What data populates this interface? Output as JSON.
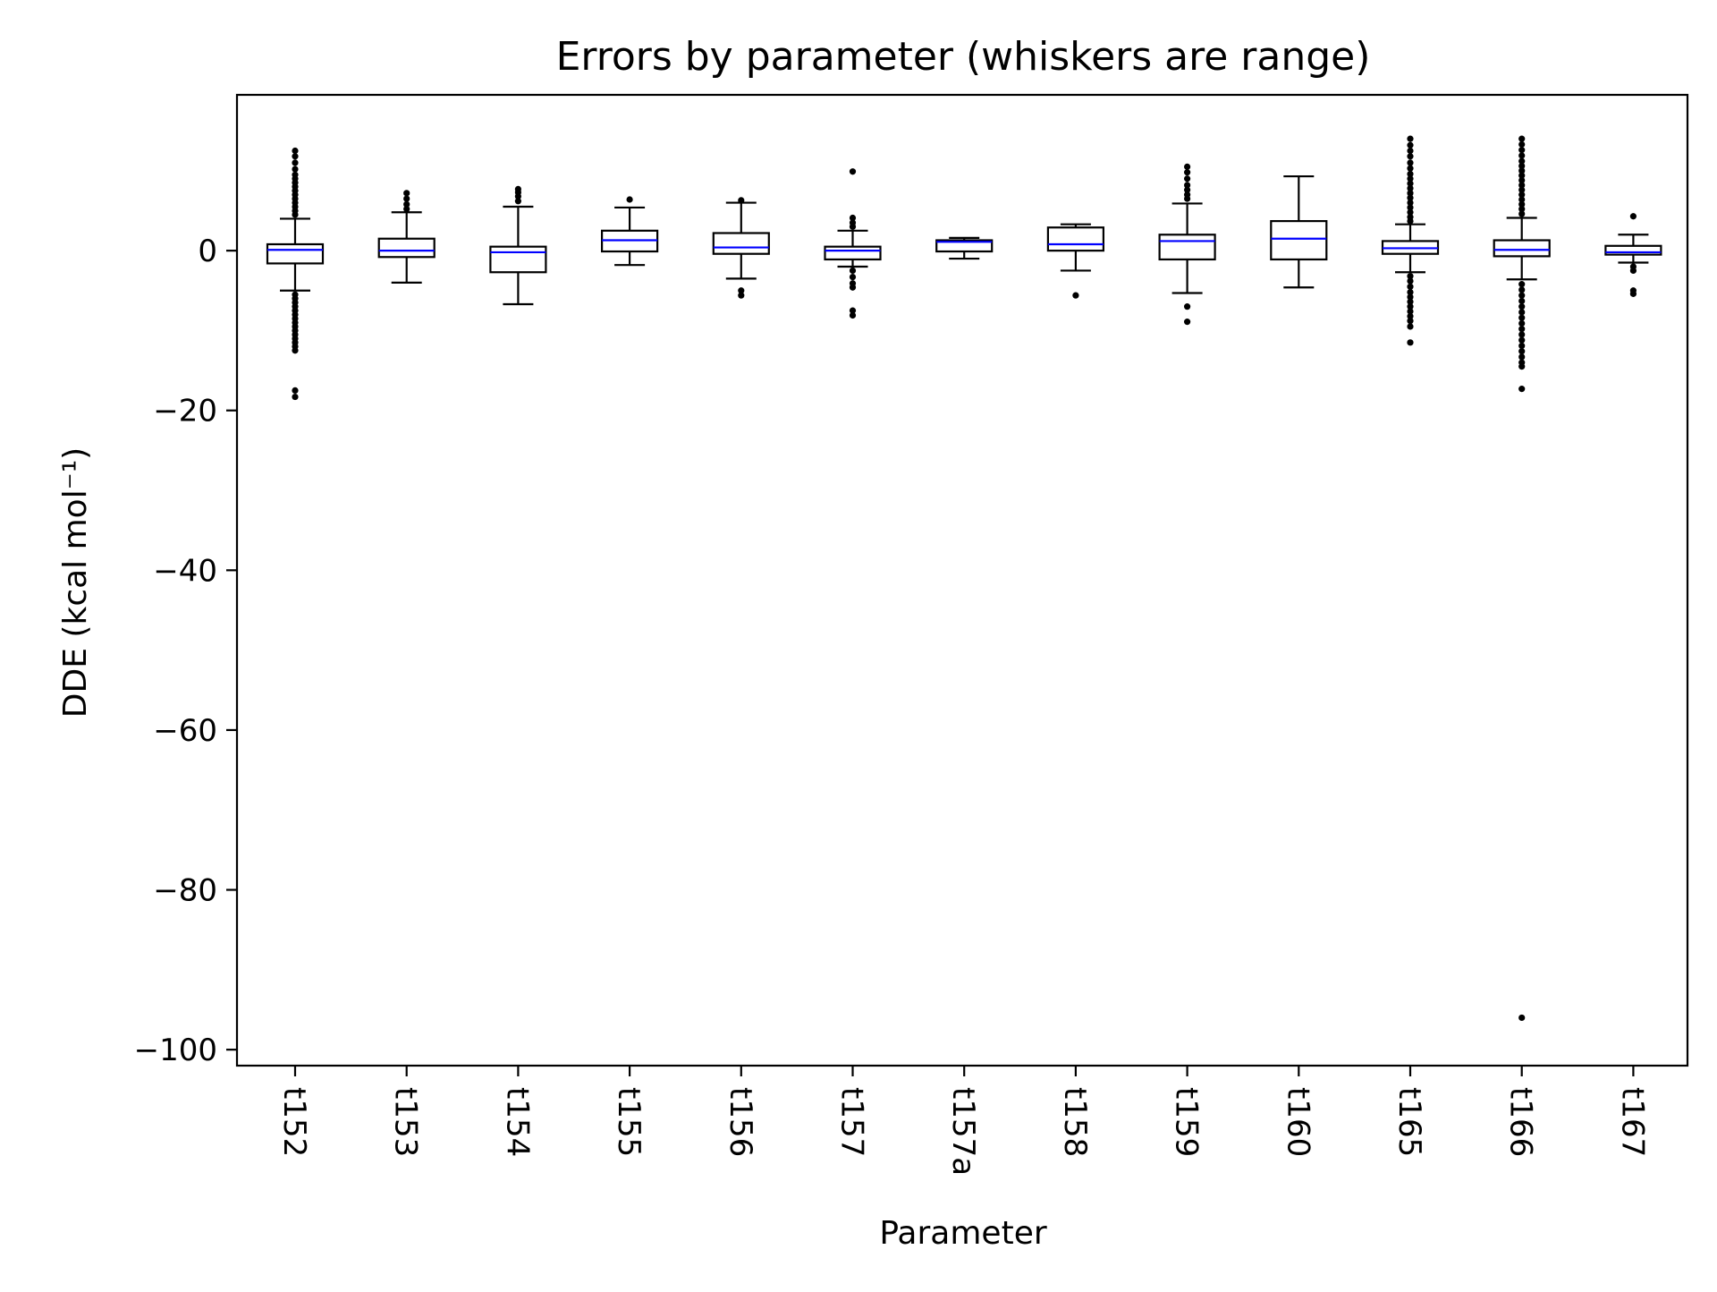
{
  "chart_data": {
    "type": "box",
    "title": "Errors by parameter (whiskers are range)",
    "xlabel": "Parameter",
    "ylabel": "DDE (kcal mol⁻¹)",
    "ylim": [
      -102,
      19.5
    ],
    "yticks": [
      0,
      -20,
      -40,
      -60,
      -80,
      -100
    ],
    "ytick_labels": [
      "0",
      "−20",
      "−40",
      "−60",
      "−80",
      "−100"
    ],
    "grid": false,
    "legend": "none",
    "colors": {
      "box": "#000000",
      "median": "#0000ff",
      "outlier": "#000000"
    },
    "categories": [
      "t152",
      "t153",
      "t154",
      "t155",
      "t156",
      "t157",
      "t157a",
      "t158",
      "t159",
      "t160",
      "t165",
      "t166",
      "t167"
    ],
    "series": [
      {
        "category": "t152",
        "q1": -1.6,
        "median": 0.1,
        "q3": 0.8,
        "whisker_low": -5.0,
        "whisker_high": 4.0,
        "outliers": [
          12.5,
          11.8,
          11.0,
          10.2,
          9.5,
          9.0,
          8.5,
          8.0,
          7.5,
          7.0,
          6.5,
          6.0,
          5.5,
          5.0,
          4.5,
          -5.5,
          -6.0,
          -6.5,
          -7.0,
          -7.5,
          -8.0,
          -8.5,
          -9.0,
          -9.5,
          -10.0,
          -10.5,
          -11.0,
          -11.5,
          -12.0,
          -12.5,
          -17.5,
          -18.3
        ]
      },
      {
        "category": "t153",
        "q1": -0.8,
        "median": 0.0,
        "q3": 1.5,
        "whisker_low": -4.0,
        "whisker_high": 4.8,
        "outliers": [
          7.2,
          6.5,
          5.8,
          5.2
        ]
      },
      {
        "category": "t154",
        "q1": -2.7,
        "median": -0.2,
        "q3": 0.5,
        "whisker_low": -6.7,
        "whisker_high": 5.5,
        "outliers": [
          7.7,
          7.3,
          6.8,
          6.2
        ]
      },
      {
        "category": "t155",
        "q1": -0.1,
        "median": 1.3,
        "q3": 2.5,
        "whisker_low": -1.8,
        "whisker_high": 5.4,
        "outliers": [
          6.4
        ]
      },
      {
        "category": "t156",
        "q1": -0.4,
        "median": 0.4,
        "q3": 2.2,
        "whisker_low": -3.5,
        "whisker_high": 6.0,
        "outliers": [
          6.3,
          -5.0,
          -5.6
        ]
      },
      {
        "category": "t157",
        "q1": -1.1,
        "median": 0.0,
        "q3": 0.5,
        "whisker_low": -2.0,
        "whisker_high": 2.5,
        "outliers": [
          9.9,
          4.1,
          3.5,
          3.0,
          -2.5,
          -3.3,
          -4.1,
          -4.6,
          -7.5,
          -8.1
        ]
      },
      {
        "category": "t157a",
        "q1": -0.1,
        "median": 1.1,
        "q3": 1.3,
        "whisker_low": -1.0,
        "whisker_high": 1.6,
        "outliers": []
      },
      {
        "category": "t158",
        "q1": 0.0,
        "median": 0.8,
        "q3": 2.9,
        "whisker_low": -2.5,
        "whisker_high": 3.3,
        "outliers": [
          -5.6
        ]
      },
      {
        "category": "t159",
        "q1": -1.1,
        "median": 1.2,
        "q3": 2.0,
        "whisker_low": -5.3,
        "whisker_high": 5.9,
        "outliers": [
          10.5,
          9.8,
          9.0,
          8.2,
          7.6,
          7.0,
          6.5,
          -7.0,
          -8.9
        ]
      },
      {
        "category": "t160",
        "q1": -1.1,
        "median": 1.5,
        "q3": 3.7,
        "whisker_low": -4.6,
        "whisker_high": 9.3,
        "outliers": []
      },
      {
        "category": "t165",
        "q1": -0.4,
        "median": 0.3,
        "q3": 1.2,
        "whisker_low": -2.7,
        "whisker_high": 3.3,
        "outliers": [
          14.0,
          13.2,
          12.5,
          11.8,
          11.0,
          10.3,
          9.6,
          9.0,
          8.4,
          7.8,
          7.2,
          6.6,
          6.0,
          5.4,
          4.8,
          4.2,
          3.7,
          -3.2,
          -3.8,
          -4.5,
          -5.2,
          -5.8,
          -6.4,
          -7.0,
          -7.6,
          -8.2,
          -8.8,
          -9.5,
          -11.5
        ]
      },
      {
        "category": "t166",
        "q1": -0.7,
        "median": 0.1,
        "q3": 1.3,
        "whisker_low": -3.6,
        "whisker_high": 4.1,
        "outliers": [
          14.0,
          13.3,
          12.6,
          11.9,
          11.2,
          10.6,
          10.0,
          9.4,
          8.8,
          8.2,
          7.6,
          7.0,
          6.4,
          5.8,
          5.2,
          4.6,
          -4.2,
          -4.9,
          -5.6,
          -6.3,
          -7.0,
          -7.7,
          -8.4,
          -9.1,
          -9.8,
          -10.5,
          -11.2,
          -11.9,
          -12.6,
          -13.3,
          -14.0,
          -14.5,
          -17.3,
          -96.0
        ]
      },
      {
        "category": "t167",
        "q1": -0.5,
        "median": -0.2,
        "q3": 0.6,
        "whisker_low": -1.5,
        "whisker_high": 2.0,
        "outliers": [
          4.3,
          -2.0,
          -2.5,
          -5.0,
          -5.4
        ]
      }
    ]
  }
}
